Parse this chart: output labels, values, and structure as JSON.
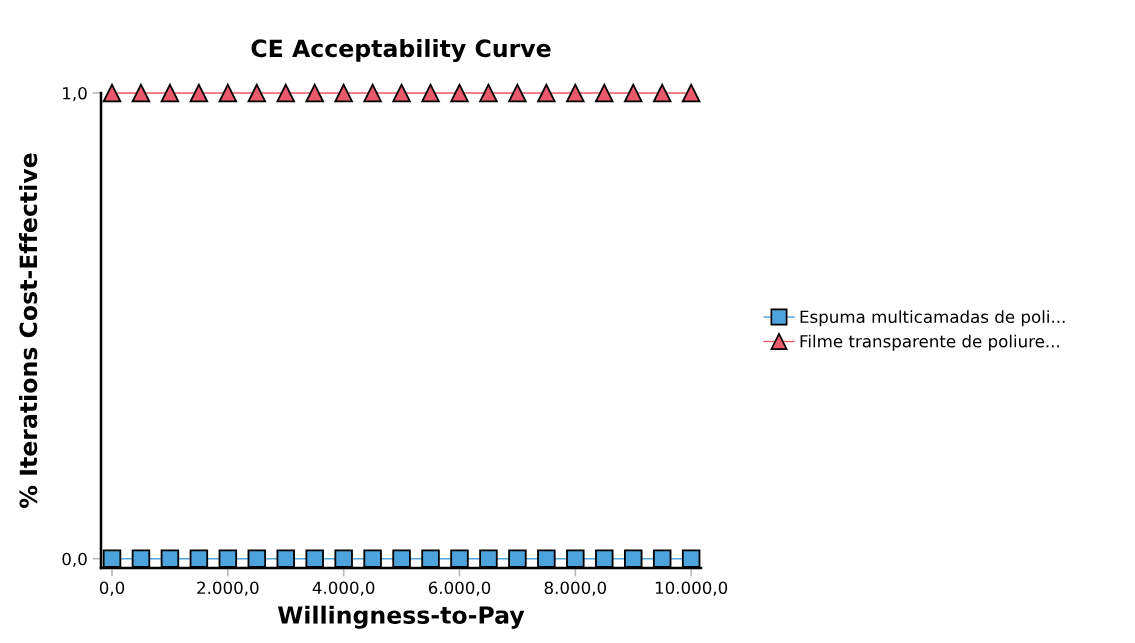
{
  "chart_data": {
    "type": "line",
    "title": "CE Acceptability Curve",
    "xlabel": "Willingness-to-Pay",
    "ylabel": "% Iterations Cost-Effective",
    "x": [
      0,
      500,
      1000,
      1500,
      2000,
      2500,
      3000,
      3500,
      4000,
      4500,
      5000,
      5500,
      6000,
      6500,
      7000,
      7500,
      8000,
      8500,
      9000,
      9500,
      10000
    ],
    "series": [
      {
        "name": "Espuma multicamadas de poli...",
        "color": "#4da3dc",
        "marker": "square",
        "values": [
          0,
          0,
          0,
          0,
          0,
          0,
          0,
          0,
          0,
          0,
          0,
          0,
          0,
          0,
          0,
          0,
          0,
          0,
          0,
          0,
          0
        ]
      },
      {
        "name": "Filme transparente de poliure...",
        "color": "#e85a6a",
        "marker": "triangle",
        "values": [
          1,
          1,
          1,
          1,
          1,
          1,
          1,
          1,
          1,
          1,
          1,
          1,
          1,
          1,
          1,
          1,
          1,
          1,
          1,
          1,
          1
        ]
      }
    ],
    "xlim": [
      -190,
      10170
    ],
    "ylim": [
      -0.02,
      1.0
    ],
    "xticks": [
      {
        "value": 0,
        "label": "0,0"
      },
      {
        "value": 2000,
        "label": "2.000,0"
      },
      {
        "value": 4000,
        "label": "4.000,0"
      },
      {
        "value": 6000,
        "label": "6.000,0"
      },
      {
        "value": 8000,
        "label": "8.000,0"
      },
      {
        "value": 10000,
        "label": "10.000,0"
      }
    ],
    "yticks": [
      {
        "value": 0,
        "label": "0,0"
      },
      {
        "value": 1,
        "label": "1,0"
      }
    ],
    "legend": "right",
    "grid": false
  }
}
